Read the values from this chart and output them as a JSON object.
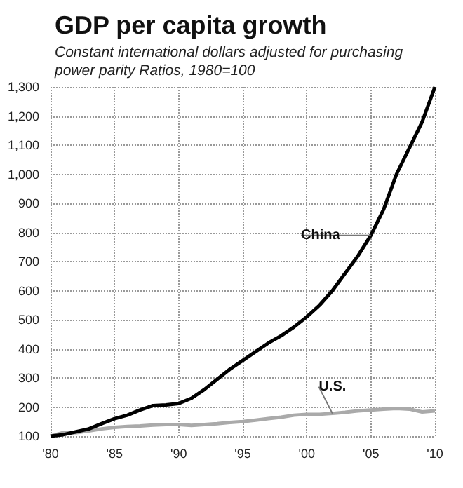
{
  "chart_data": {
    "type": "line",
    "title": "GDP per capita growth",
    "subtitle": "Constant international dollars adjusted for purchasing power parity Ratios, 1980=100",
    "x": [
      1980,
      1981,
      1982,
      1983,
      1984,
      1985,
      1986,
      1987,
      1988,
      1989,
      1990,
      1991,
      1992,
      1993,
      1994,
      1995,
      1996,
      1997,
      1998,
      1999,
      2000,
      2001,
      2002,
      2003,
      2004,
      2005,
      2006,
      2007,
      2008,
      2009,
      2010
    ],
    "series": [
      {
        "name": "China",
        "color": "#000000",
        "values": [
          100,
          105,
          115,
          125,
          143,
          160,
          172,
          190,
          205,
          207,
          212,
          230,
          260,
          295,
          330,
          360,
          390,
          420,
          445,
          475,
          510,
          550,
          600,
          660,
          720,
          790,
          880,
          1000,
          1090,
          1180,
          1300
        ]
      },
      {
        "name": "U.S.",
        "color": "#aaaaaa",
        "values": [
          100,
          112,
          112,
          118,
          125,
          130,
          133,
          135,
          138,
          140,
          140,
          137,
          140,
          143,
          147,
          150,
          155,
          160,
          165,
          172,
          175,
          175,
          178,
          182,
          187,
          190,
          193,
          195,
          193,
          183,
          187
        ]
      }
    ],
    "xlim": [
      1980,
      2010
    ],
    "xticks": [
      {
        "value": 1980,
        "label": "'80"
      },
      {
        "value": 1985,
        "label": "'85"
      },
      {
        "value": 1990,
        "label": "'90"
      },
      {
        "value": 1995,
        "label": "'95"
      },
      {
        "value": 2000,
        "label": "'00"
      },
      {
        "value": 2005,
        "label": "'05"
      },
      {
        "value": 2010,
        "label": "'10"
      }
    ],
    "ylim": [
      100,
      1300
    ],
    "yticks": [
      {
        "value": 100,
        "label": "100"
      },
      {
        "value": 200,
        "label": "200"
      },
      {
        "value": 300,
        "label": "300"
      },
      {
        "value": 400,
        "label": "400"
      },
      {
        "value": 500,
        "label": "500"
      },
      {
        "value": 600,
        "label": "600"
      },
      {
        "value": 700,
        "label": "700"
      },
      {
        "value": 800,
        "label": "800"
      },
      {
        "value": 900,
        "label": "900"
      },
      {
        "value": 1000,
        "label": "1,000"
      },
      {
        "value": 1100,
        "label": "1,100"
      },
      {
        "value": 1200,
        "label": "1,200"
      },
      {
        "value": 1300,
        "label": "1,300"
      }
    ],
    "grid": true,
    "legend": false,
    "marker": "none",
    "line_style": "solid"
  }
}
